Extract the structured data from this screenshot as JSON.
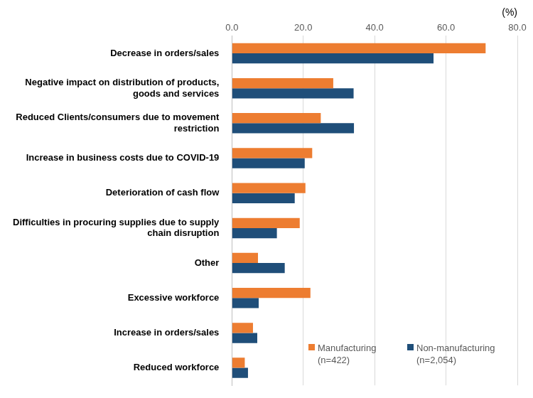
{
  "chart_data": {
    "type": "bar",
    "orientation": "horizontal",
    "x_label": "(%)",
    "categories": [
      "Decrease in orders/sales",
      "Negative impact on distribution of products, goods and services",
      "Reduced Clients/consumers due to movement restriction",
      "Increase in business costs due to COVID-19",
      "Deterioration of cash flow",
      "Difficulties in procuring supplies due to supply chain disruption",
      "Other",
      "Excessive workforce",
      "Increase in orders/sales",
      "Reduced workforce"
    ],
    "series": [
      {
        "name": "Manufacturing (n=422)",
        "color": "#ed7d31",
        "values": [
          71.1,
          28.4,
          24.9,
          22.5,
          20.6,
          19.0,
          7.3,
          22.0,
          5.9,
          3.6
        ]
      },
      {
        "name": "Non-manufacturing (n=2,054)",
        "color": "#1f4e79",
        "values": [
          56.5,
          34.1,
          34.2,
          20.4,
          17.6,
          12.6,
          14.8,
          7.5,
          7.1,
          4.5
        ]
      }
    ],
    "xlim": [
      0,
      80
    ],
    "xticks": [
      {
        "value": 0,
        "label": "0.0"
      },
      {
        "value": 20,
        "label": "20.0"
      },
      {
        "value": 40,
        "label": "40.0"
      },
      {
        "value": 60,
        "label": "60.0"
      },
      {
        "value": 80,
        "label": "80.0"
      }
    ],
    "grid": true,
    "legend": "lower right"
  }
}
